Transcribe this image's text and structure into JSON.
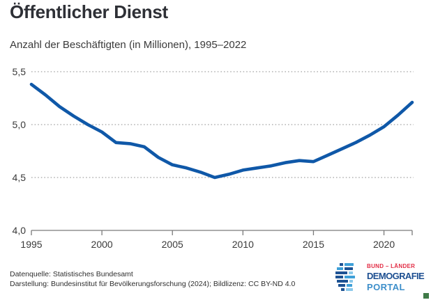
{
  "header": {
    "title": "Öffentlicher Dienst",
    "subtitle": "Anzahl der Beschäftigten (in Millionen), 1995–2022"
  },
  "chart_data": {
    "type": "line",
    "title": "Öffentlicher Dienst",
    "subtitle": "Anzahl der Beschäftigten (in Millionen), 1995–2022",
    "x": [
      1995,
      1996,
      1997,
      1998,
      1999,
      2000,
      2001,
      2002,
      2003,
      2004,
      2005,
      2006,
      2007,
      2008,
      2009,
      2010,
      2011,
      2012,
      2013,
      2014,
      2015,
      2016,
      2017,
      2018,
      2019,
      2020,
      2021,
      2022
    ],
    "values": [
      5.38,
      5.28,
      5.17,
      5.08,
      5.0,
      4.93,
      4.83,
      4.82,
      4.79,
      4.69,
      4.62,
      4.59,
      4.55,
      4.5,
      4.53,
      4.57,
      4.59,
      4.61,
      4.64,
      4.66,
      4.65,
      4.71,
      4.77,
      4.83,
      4.9,
      4.98,
      5.09,
      5.21
    ],
    "xlabel": "",
    "ylabel": "",
    "xlim": [
      1995,
      2022
    ],
    "ylim": [
      4.0,
      5.5
    ],
    "yticks": [
      {
        "label": "5,5",
        "value": 5.5
      },
      {
        "label": "5,0",
        "value": 5.0
      },
      {
        "label": "4,5",
        "value": 4.5
      },
      {
        "label": "4,0",
        "value": 4.0
      }
    ],
    "xticks": [
      {
        "label": "1995",
        "year": 1995
      },
      {
        "label": "2000",
        "year": 2000
      },
      {
        "label": "2005",
        "year": 2005
      },
      {
        "label": "2010",
        "year": 2010
      },
      {
        "label": "2015",
        "year": 2015
      },
      {
        "label": "2020",
        "year": 2020
      }
    ],
    "grid": "dotted-horizontal",
    "legend": "none",
    "colors": {
      "line": "#0F58A8",
      "grid": "#A3A3A3",
      "axis": "#7A7A7A",
      "tick_text": "#3A3A3A"
    }
  },
  "footer": {
    "source": "Datenquelle: Statistisches Bundesamt",
    "attribution": "Darstellung: Bundesinstitut für Bevölkerungsforschung (2024); Bildlizenz: CC BY-ND 4.0"
  },
  "logo": {
    "icon": "dash-rows-demografie-icon",
    "top": "BUND – LÄNDER",
    "middle": "DEMOGRAFIE",
    "bottom": "PORTAL",
    "colors": {
      "top": "#E22D45",
      "middle": "#1D4F91",
      "bottom": "#3E8FCA",
      "icon_dark": "#1D5293",
      "icon_mid": "#3EA0D8",
      "icon_light": "#8CC9EA"
    }
  },
  "corner_marker": {
    "color": "#3F7A48"
  }
}
